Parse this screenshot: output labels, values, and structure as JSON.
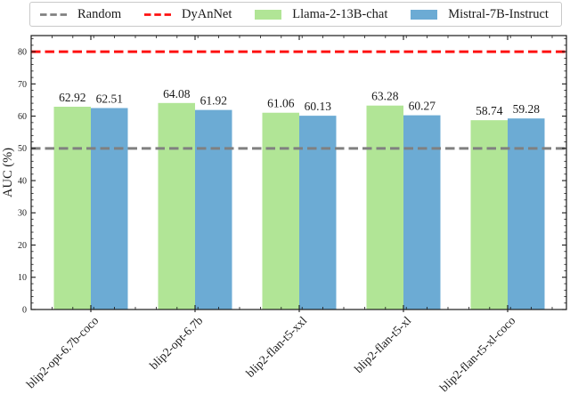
{
  "legend": {
    "items": [
      {
        "label": "Random",
        "type": "dashed-line",
        "color": "#808080"
      },
      {
        "label": "DyAnNet",
        "type": "dashed-line",
        "color": "#fe1010"
      },
      {
        "label": "Llama-2-13B-chat",
        "type": "patch",
        "color": "#b1e596"
      },
      {
        "label": "Mistral-7B-Instruct",
        "type": "patch",
        "color": "#6cabd4"
      }
    ]
  },
  "chart_data": {
    "type": "bar",
    "title": "",
    "xlabel": "",
    "ylabel": "AUC (%)",
    "ylim": [
      0,
      85
    ],
    "yticks": [
      0,
      10,
      20,
      30,
      40,
      50,
      60,
      70,
      80
    ],
    "grid": false,
    "legend_position": "top",
    "bar_value_labels": true,
    "categories": [
      "blip2-opt-6.7b-coco",
      "blip2-opt-6.7b",
      "blip2-flan-t5-xxl",
      "blip2-flan-t5-xl",
      "blip2-flan-t5-xl-coco"
    ],
    "series": [
      {
        "name": "Llama-2-13B-chat",
        "color": "#b1e596",
        "values": [
          62.92,
          64.08,
          61.06,
          63.28,
          58.74
        ]
      },
      {
        "name": "Mistral-7B-Instruct",
        "color": "#6cabd4",
        "values": [
          62.51,
          61.92,
          60.13,
          60.27,
          59.28
        ]
      }
    ],
    "reference_lines": [
      {
        "name": "Random",
        "value": 50,
        "color": "#808080",
        "style": "dashed"
      },
      {
        "name": "DyAnNet",
        "value": 80,
        "color": "#fe1010",
        "style": "dashed"
      }
    ]
  }
}
